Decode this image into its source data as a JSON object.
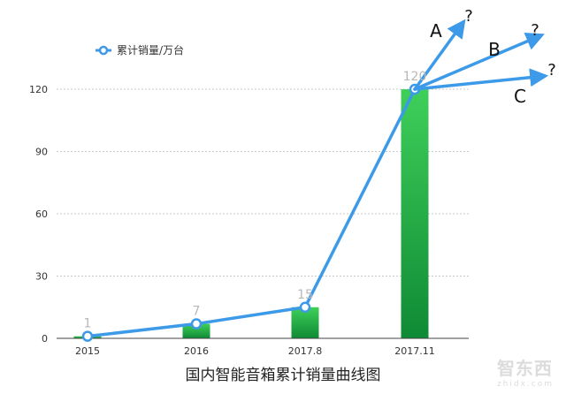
{
  "chart_data": {
    "type": "bar",
    "title": "国内智能音箱累计销量曲线图",
    "categories": [
      "2015",
      "2016",
      "2017.8",
      "2017.11"
    ],
    "series": [
      {
        "name": "累计销量/万台",
        "values": [
          1,
          7,
          15,
          120
        ]
      }
    ],
    "data_labels": [
      "1",
      "7",
      "15",
      "120"
    ],
    "ylim": [
      0,
      120
    ],
    "yticks": [
      0,
      30,
      60,
      90,
      120
    ],
    "grid": true,
    "legend_position": "top-left",
    "projection_labels": [
      {
        "letter": "A",
        "mark": "?"
      },
      {
        "letter": "B",
        "mark": "?"
      },
      {
        "letter": "C",
        "mark": "?"
      }
    ],
    "colors": {
      "bar_top": "#3fcf5a",
      "bar_bottom": "#0f8a35",
      "line": "#3c9ae8",
      "grid": "#c8c8c8"
    }
  },
  "watermark": {
    "main": "智东西",
    "sub": "zhidx.com"
  }
}
